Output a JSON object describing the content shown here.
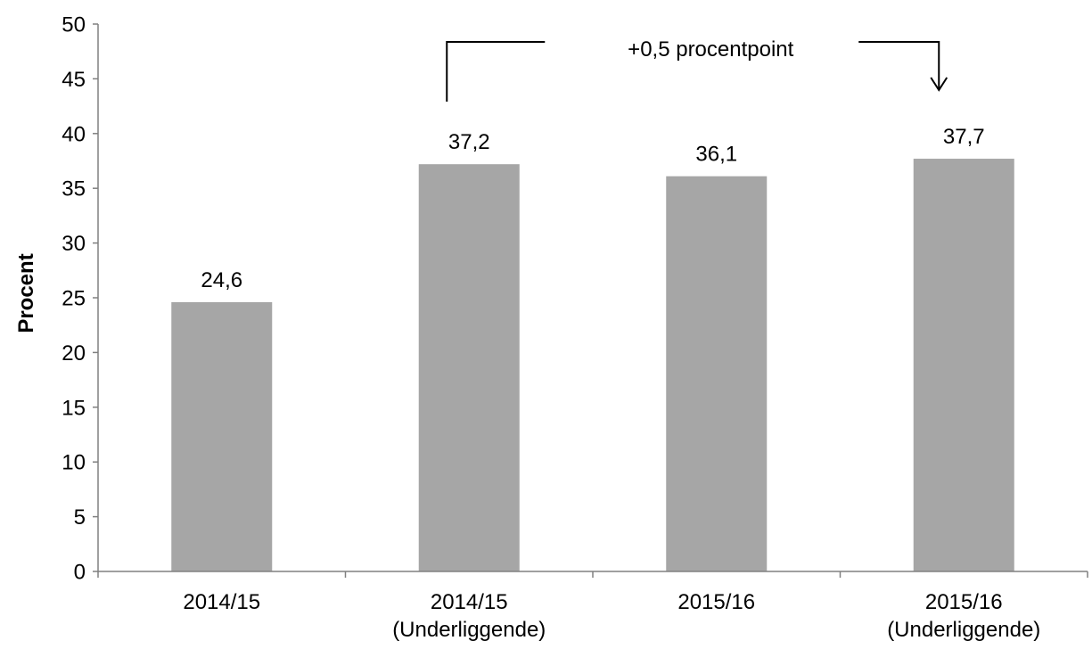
{
  "chart_data": {
    "type": "bar",
    "categories": [
      [
        "2014/15"
      ],
      [
        "2014/15",
        "(Underliggende)"
      ],
      [
        "2015/16"
      ],
      [
        "2015/16",
        "(Underliggende)"
      ]
    ],
    "values": [
      24.6,
      37.2,
      36.1,
      37.7
    ],
    "value_labels": [
      "24,6",
      "37,2",
      "36,1",
      "37,7"
    ],
    "ylabel": "Procent",
    "ylim": [
      0,
      50
    ],
    "yticks": [
      0,
      5,
      10,
      15,
      20,
      25,
      30,
      35,
      40,
      45,
      50
    ],
    "grid": false,
    "bar_color": "#a6a6a6",
    "annotation": {
      "text": "+0,5 procentpoint",
      "from_category_index": 1,
      "to_category_index": 3
    }
  }
}
